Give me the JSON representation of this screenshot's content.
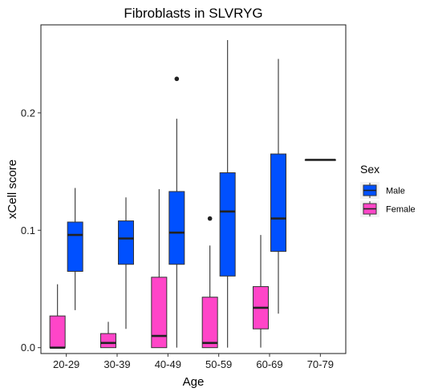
{
  "chart_data": {
    "type": "box",
    "title": "Fibroblasts in SLVRYG",
    "xlabel": "Age",
    "ylabel": "xCell score",
    "categories": [
      "20-29",
      "30-39",
      "40-49",
      "50-59",
      "60-69",
      "70-79"
    ],
    "y_ticks": [
      "0.0",
      "0.1",
      "0.2"
    ],
    "y_tick_values": [
      0.0,
      0.1,
      0.2
    ],
    "ylim": [
      -0.005,
      0.275
    ],
    "grid": false,
    "legend": {
      "title": "Sex",
      "position": "right"
    },
    "series": [
      {
        "name": "Male",
        "color": "#0050FF",
        "boxes": [
          {
            "category": "20-29",
            "min": 0.032,
            "q1": 0.065,
            "median": 0.096,
            "q3": 0.107,
            "max": 0.136,
            "outliers": []
          },
          {
            "category": "30-39",
            "min": 0.016,
            "q1": 0.071,
            "median": 0.093,
            "q3": 0.108,
            "max": 0.128,
            "outliers": []
          },
          {
            "category": "40-49",
            "min": 0.0,
            "q1": 0.071,
            "median": 0.098,
            "q3": 0.133,
            "max": 0.195,
            "outliers": [
              0.229
            ]
          },
          {
            "category": "50-59",
            "min": 0.0,
            "q1": 0.061,
            "median": 0.116,
            "q3": 0.149,
            "max": 0.262,
            "outliers": []
          },
          {
            "category": "60-69",
            "min": 0.029,
            "q1": 0.082,
            "median": 0.11,
            "q3": 0.165,
            "max": 0.246,
            "outliers": []
          },
          {
            "category": "70-79",
            "min": 0.16,
            "q1": 0.16,
            "median": 0.16,
            "q3": 0.16,
            "max": 0.16,
            "outliers": []
          }
        ]
      },
      {
        "name": "Female",
        "color": "#FF45C8",
        "boxes": [
          {
            "category": "20-29",
            "min": 0.0,
            "q1": 0.0,
            "median": 0.0,
            "q3": 0.027,
            "max": 0.054,
            "outliers": []
          },
          {
            "category": "30-39",
            "min": 0.0,
            "q1": 0.0,
            "median": 0.004,
            "q3": 0.012,
            "max": 0.022,
            "outliers": []
          },
          {
            "category": "40-49",
            "min": 0.0,
            "q1": 0.0,
            "median": 0.01,
            "q3": 0.06,
            "max": 0.135,
            "outliers": []
          },
          {
            "category": "50-59",
            "min": 0.0,
            "q1": 0.0,
            "median": 0.004,
            "q3": 0.043,
            "max": 0.087,
            "outliers": [
              0.11
            ]
          },
          {
            "category": "60-69",
            "min": 0.0,
            "q1": 0.016,
            "median": 0.034,
            "q3": 0.052,
            "max": 0.096,
            "outliers": []
          }
        ]
      }
    ]
  }
}
